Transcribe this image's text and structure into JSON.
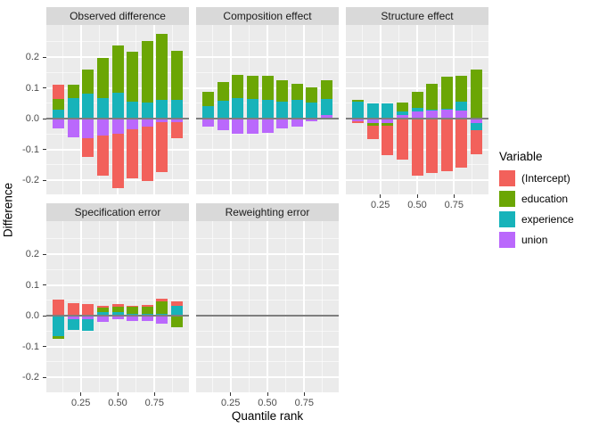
{
  "chart_data": {
    "type": "bar",
    "subtype": "stacked-faceted-bar",
    "title": "",
    "xlabel": "Quantile rank",
    "ylabel": "Difference",
    "legend_title": "Variable",
    "legend_position": "right",
    "grid": true,
    "zero_line": true,
    "categories": [
      0.1,
      0.2,
      0.3,
      0.4,
      0.5,
      0.6,
      0.7,
      0.8,
      0.9
    ],
    "x_tick_labels": [
      "0.25",
      "0.50",
      "0.75"
    ],
    "x_tick_values": [
      0.25,
      0.5,
      0.75
    ],
    "y_tick_labels": [
      "0.2",
      "0.1",
      "0.0",
      "-0.1",
      "-0.2"
    ],
    "y_tick_values": [
      0.2,
      0.1,
      0.0,
      -0.1,
      -0.2
    ],
    "y_minor_values": [
      0.25,
      0.15,
      0.05,
      -0.05,
      -0.15,
      -0.25
    ],
    "x_minor_values": [
      0.125,
      0.375,
      0.625,
      0.875
    ],
    "ylim": [
      -0.25,
      0.305
    ],
    "xlim": [
      0.016,
      0.984
    ],
    "stack_order": [
      "union",
      "experience",
      "education",
      "(Intercept)"
    ],
    "variables": [
      {
        "name": "(Intercept)",
        "color": "#F2615B"
      },
      {
        "name": "education",
        "color": "#6BA604"
      },
      {
        "name": "experience",
        "color": "#17B3BA"
      },
      {
        "name": "union",
        "color": "#BA68FC"
      }
    ],
    "facets": [
      {
        "title": "Observed difference",
        "series": [
          {
            "name": "(Intercept)",
            "values": [
              0.044,
              0.0,
              -0.06,
              -0.131,
              -0.178,
              -0.161,
              -0.177,
              -0.163,
              -0.052
            ]
          },
          {
            "name": "education",
            "values": [
              0.037,
              0.044,
              0.079,
              0.128,
              0.154,
              0.161,
              0.198,
              0.214,
              0.157
            ]
          },
          {
            "name": "experience",
            "values": [
              0.028,
              0.067,
              0.08,
              0.068,
              0.085,
              0.056,
              0.053,
              0.062,
              0.062
            ]
          },
          {
            "name": "union",
            "values": [
              -0.031,
              -0.06,
              -0.064,
              -0.054,
              -0.048,
              -0.034,
              -0.025,
              -0.012,
              -0.012
            ]
          }
        ]
      },
      {
        "title": "Composition effect",
        "series": [
          {
            "name": "(Intercept)",
            "values": [
              0.0,
              0.0,
              0.0,
              0.0,
              0.0,
              0.0,
              0.0,
              0.0,
              0.0
            ]
          },
          {
            "name": "education",
            "values": [
              0.045,
              0.062,
              0.074,
              0.075,
              0.078,
              0.068,
              0.053,
              0.049,
              0.061
            ]
          },
          {
            "name": "experience",
            "values": [
              0.042,
              0.057,
              0.068,
              0.064,
              0.061,
              0.056,
              0.061,
              0.053,
              0.053
            ]
          },
          {
            "name": "union",
            "values": [
              -0.025,
              -0.039,
              -0.049,
              -0.048,
              -0.046,
              -0.033,
              -0.025,
              -0.01,
              0.012
            ]
          }
        ]
      },
      {
        "title": "Structure effect",
        "series": [
          {
            "name": "(Intercept)",
            "values": [
              -0.006,
              -0.043,
              -0.096,
              -0.133,
              -0.186,
              -0.178,
              -0.171,
              -0.16,
              -0.079
            ]
          },
          {
            "name": "education",
            "values": [
              0.006,
              -0.009,
              -0.008,
              0.031,
              0.052,
              0.084,
              0.102,
              0.084,
              0.158
            ]
          },
          {
            "name": "experience",
            "values": [
              0.055,
              0.049,
              0.049,
              0.01,
              0.012,
              0.004,
              0.002,
              0.029,
              -0.023
            ]
          },
          {
            "name": "union",
            "values": [
              -0.008,
              -0.015,
              -0.014,
              0.012,
              0.022,
              0.026,
              0.031,
              0.026,
              -0.014
            ]
          }
        ]
      },
      {
        "title": "Specification error",
        "series": [
          {
            "name": "(Intercept)",
            "values": [
              0.053,
              0.041,
              0.038,
              0.007,
              0.008,
              0.002,
              0.006,
              0.011,
              0.014
            ]
          },
          {
            "name": "education",
            "values": [
              -0.009,
              0.0,
              0.0,
              0.013,
              0.018,
              0.022,
              0.022,
              0.038,
              -0.038
            ]
          },
          {
            "name": "experience",
            "values": [
              -0.066,
              -0.034,
              -0.035,
              0.013,
              0.012,
              0.007,
              0.007,
              0.007,
              0.032
            ]
          },
          {
            "name": "union",
            "values": [
              0.0,
              -0.012,
              -0.013,
              -0.019,
              -0.013,
              -0.016,
              -0.016,
              -0.026,
              0.0
            ]
          }
        ]
      },
      {
        "title": "Reweighting error",
        "series": [
          {
            "name": "(Intercept)",
            "values": [
              0.0,
              0.0,
              0.0,
              0.0,
              0.0,
              0.0,
              0.0,
              0.0,
              0.0
            ]
          },
          {
            "name": "education",
            "values": [
              0.0,
              0.0,
              0.0,
              0.0,
              0.0,
              0.0,
              0.0,
              0.0,
              0.0
            ]
          },
          {
            "name": "experience",
            "values": [
              0.0,
              0.0,
              0.0,
              0.0,
              0.0,
              0.0,
              0.0,
              0.0,
              0.0
            ]
          },
          {
            "name": "union",
            "values": [
              0.0,
              0.0,
              0.0,
              0.0,
              0.0,
              0.0,
              0.0,
              0.0,
              0.0
            ]
          }
        ]
      }
    ]
  },
  "theme_colors": {
    "panel_background": "#EBEBEB",
    "strip_background": "#D9D9D9",
    "grid_major": "#FFFFFF",
    "zero_line": "#7E7E7E",
    "tick_text": "#4D4D4D",
    "axis_text": "#000000"
  }
}
